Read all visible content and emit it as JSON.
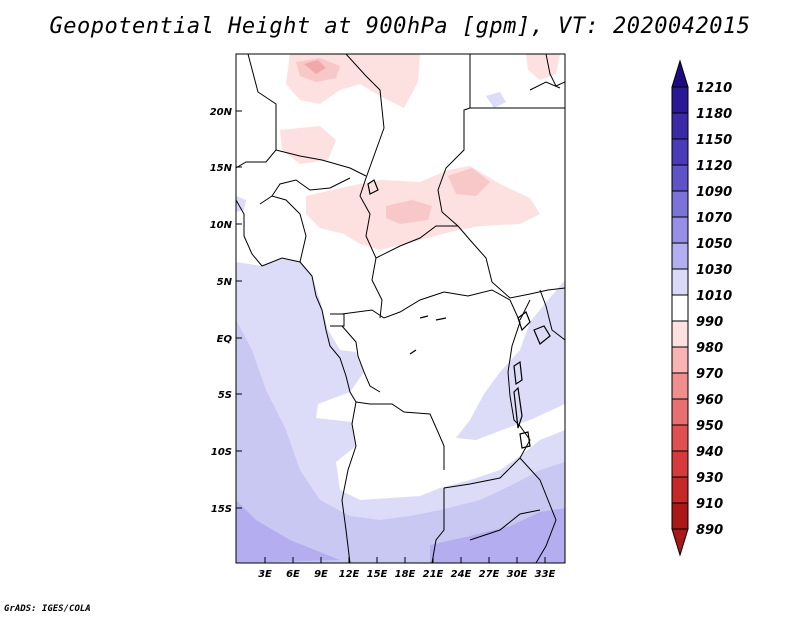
{
  "title": "Geopotential Height at 900hPa [gpm], VT: 2020042015",
  "credit": "GrADS: IGES/COLA",
  "map": {
    "lat_labels": [
      "20N",
      "15N",
      "10N",
      "5N",
      "EQ",
      "5S",
      "10S",
      "15S"
    ],
    "lon_labels": [
      "3E",
      "6E",
      "9E",
      "12E",
      "15E",
      "18E",
      "21E",
      "24E",
      "27E",
      "30E",
      "33E"
    ]
  },
  "legend": {
    "levels": [
      {
        "value": "1210",
        "color": "#1e0a82"
      },
      {
        "value": "1180",
        "color": "#2a1896"
      },
      {
        "value": "1150",
        "color": "#3b2aa8"
      },
      {
        "value": "1120",
        "color": "#4a3cb8"
      },
      {
        "value": "1090",
        "color": "#5e54c8"
      },
      {
        "value": "1070",
        "color": "#7a74d8"
      },
      {
        "value": "1050",
        "color": "#958fe5"
      },
      {
        "value": "1030",
        "color": "#b2aef0"
      },
      {
        "value": "1010",
        "color": "#dadaf7"
      },
      {
        "value": "990",
        "color": "#ffffff"
      },
      {
        "value": "980",
        "color": "#fde0e0"
      },
      {
        "value": "970",
        "color": "#f8b4b4"
      },
      {
        "value": "960",
        "color": "#f08e8e"
      },
      {
        "value": "950",
        "color": "#e87070"
      },
      {
        "value": "940",
        "color": "#e05050"
      },
      {
        "value": "930",
        "color": "#d63a3a"
      },
      {
        "value": "910",
        "color": "#c42828"
      },
      {
        "value": "890",
        "color": "#aa1818"
      }
    ],
    "colors": {
      "pink_light": "#fde0e0",
      "pink": "#f8c8c8",
      "pink_deep": "#f0a8a8",
      "lav_light": "#dcdcf8",
      "lav": "#c8c8f2",
      "lav_deep": "#b4aef0"
    }
  }
}
